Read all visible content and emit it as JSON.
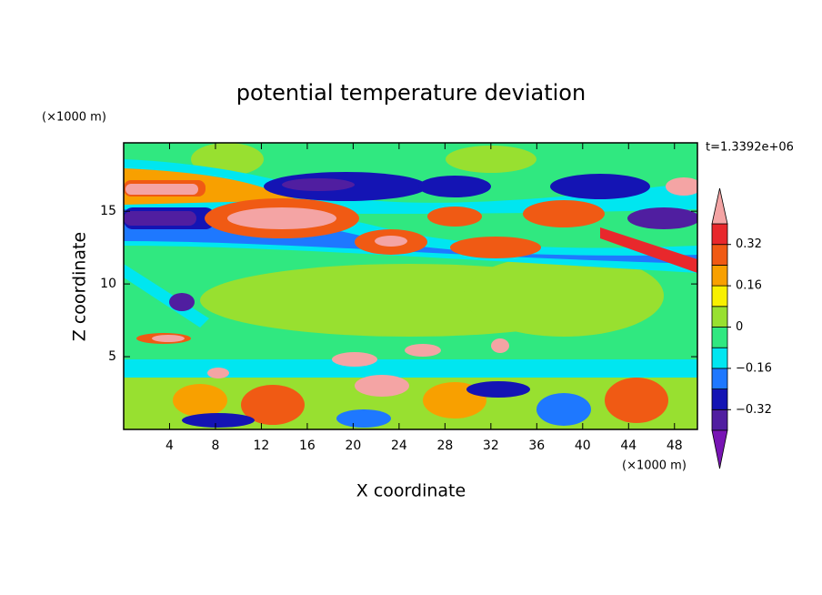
{
  "chart_data": {
    "type": "contour",
    "title": "potential temperature deviation",
    "x_label": "X coordinate",
    "y_label": "Z coordinate",
    "x_unit": "(×1000 m)",
    "y_unit": "(×1000 m)",
    "annotation": "t=1.3392e+06",
    "xlim": [
      0,
      50
    ],
    "xticks": [
      4,
      8,
      12,
      16,
      20,
      24,
      28,
      32,
      36,
      40,
      44,
      48
    ],
    "ylim": [
      0,
      19.7
    ],
    "yticks": [
      5,
      10,
      15
    ],
    "colorbar": {
      "levels": [
        -0.4,
        -0.32,
        -0.24,
        -0.16,
        -0.08,
        0,
        0.08,
        0.16,
        0.24,
        0.32,
        0.4
      ],
      "colors": [
        "#7814b4",
        "#501ea0",
        "#1414b4",
        "#1e78ff",
        "#00e6f0",
        "#30e880",
        "#98e030",
        "#f8f000",
        "#f8a000",
        "#f05a14",
        "#e8282c",
        "#f4a4a4"
      ],
      "extend": "both",
      "ticks": [
        {
          "value": -0.32,
          "label": "−0.32"
        },
        {
          "value": -0.16,
          "label": "−0.16"
        },
        0,
        0.16,
        0.32
      ]
    }
  }
}
